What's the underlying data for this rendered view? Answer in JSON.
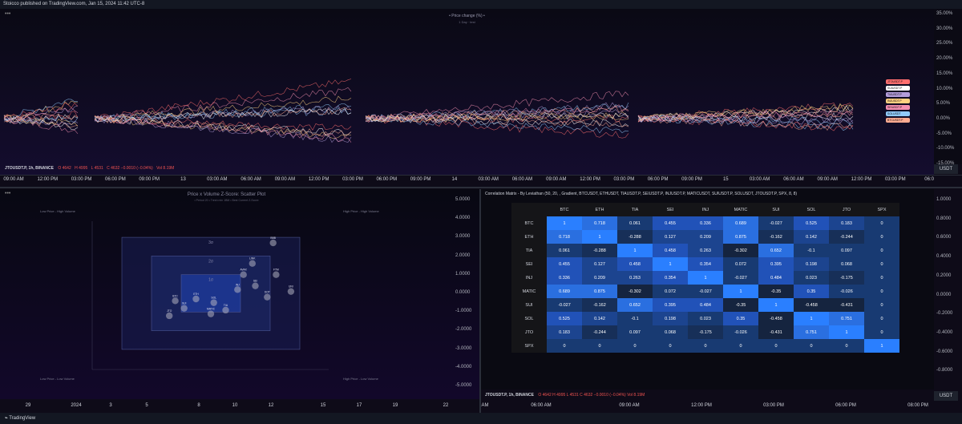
{
  "header": {
    "publisher_text": "Stoicco published on TradingView.com, Jan 15, 2024 11:42 UTC-8"
  },
  "top_chart": {
    "title": "• Price change (%) •",
    "subtitle": "1 Day · test",
    "y_ticks": [
      "35.00%",
      "30.00%",
      "25.00%",
      "20.00%",
      "15.00%",
      "10.00%",
      "5.00%",
      "0.00%",
      "-5.00%",
      "-10.00%",
      "-15.00%"
    ],
    "legend_symbol": "JTOUSDT.P, 1h, BINANCE",
    "legend_values": {
      "o": "O 4642",
      "h": "H 4995",
      "l": "L 4531",
      "c": "C 4632 −0.0010 (−0.04%)",
      "vol": "Vol 8.19M"
    },
    "time_ticks": [
      "09:00 AM",
      "12:00 PM",
      "03:00 PM",
      "06:00 PM",
      "09:00 PM",
      "13",
      "03:00 AM",
      "06:00 AM",
      "09:00 AM",
      "12:00 PM",
      "03:00 PM",
      "06:00 PM",
      "09:00 PM",
      "14",
      "03:00 AM",
      "06:00 AM",
      "09:00 AM",
      "12:00 PM",
      "03:00 PM",
      "06:00 PM",
      "09:00 PM",
      "15",
      "03:00 AM",
      "06:00 AM",
      "09:00 AM",
      "12:00 PM",
      "03:00 PM",
      "06:0"
    ],
    "currency": "USDT",
    "series_tags": [
      "JTOUSDT.P",
      "SUIUSDT.P",
      "TIAUSDT.P",
      "INJUSDT.P",
      "SEIUSDT.P",
      "SOLUSDT",
      "BTCUSDT.P"
    ],
    "series_colors": [
      "#ff6e6e",
      "#ffffff",
      "#b39ddb",
      "#ffd180",
      "#f48fb1",
      "#90caf9",
      "#ffab91"
    ]
  },
  "scatter": {
    "title": "Price x Volume Z-Score: Scatter Plot",
    "subtitle": "• Period 20 • Tresh min 1BM • Best Current Z-Score",
    "zone_labels": {
      "tl": "Low Price - High Volume",
      "tr": "High Price - High Volume",
      "bl": "Low Price - Low Volume",
      "br": "High Price - Low Volume"
    },
    "sigma_labels": [
      "3σ",
      "2σ",
      "1σ"
    ],
    "y_ticks": [
      "5.0000",
      "4.0000",
      "3.0000",
      "2.0000",
      "1.0000",
      "0.0000",
      "-1.0000",
      "-2.0000",
      "-3.0000",
      "-4.0000",
      "-5.0000"
    ],
    "x_ticks": [
      "29",
      "2024",
      "3",
      "5",
      "8",
      "10",
      "12",
      "15",
      "17",
      "19",
      "22"
    ],
    "points": [
      {
        "label": "BBB",
        "x": 2.1,
        "y": 2.7
      },
      {
        "label": "LINK",
        "x": 1.4,
        "y": 1.6
      },
      {
        "label": "FTM",
        "x": 2.2,
        "y": 1.0
      },
      {
        "label": "AVAX",
        "x": 1.1,
        "y": 1.0
      },
      {
        "label": "SEI",
        "x": 1.5,
        "y": 0.4
      },
      {
        "label": "INJ",
        "x": 0.9,
        "y": 0.2
      },
      {
        "label": "UNI",
        "x": 2.7,
        "y": 0.1
      },
      {
        "label": "DOT",
        "x": 1.9,
        "y": -0.2
      },
      {
        "label": "ETH",
        "x": -0.5,
        "y": -0.3
      },
      {
        "label": "BTC",
        "x": -1.2,
        "y": -0.4
      },
      {
        "label": "SOL",
        "x": 0.1,
        "y": -0.5
      },
      {
        "label": "SUI",
        "x": -0.9,
        "y": -0.8
      },
      {
        "label": "TIA",
        "x": 0.5,
        "y": -0.9
      },
      {
        "label": "JTO",
        "x": -1.4,
        "y": -1.2
      },
      {
        "label": "MATIC",
        "x": 0.0,
        "y": -1.1
      }
    ]
  },
  "corr": {
    "title": "Correlation Matrix - By Leviathan (50, 20, , Gradient, BTCUSDT, ETHUSDT, TIAUSDT.P, SEIUSDT.P, INJUSDT.P, MATICUSDT, SUIUSDT.P, SOLUSDT, JTOUSDT.P, SPX, 8, 8)",
    "labels": [
      "BTC",
      "ETH",
      "TIA",
      "SEI",
      "INJ",
      "MATIC",
      "SUI",
      "SOL",
      "JTO",
      "SPX"
    ],
    "matrix": [
      [
        "1",
        "0.718",
        "0.061",
        "0.455",
        "0.336",
        "0.689",
        "-0.027",
        "0.525",
        "0.183",
        "0"
      ],
      [
        "0.718",
        "1",
        "-0.288",
        "0.127",
        "0.209",
        "0.875",
        "-0.162",
        "0.142",
        "-0.244",
        "0"
      ],
      [
        "0.061",
        "-0.288",
        "1",
        "0.458",
        "0.263",
        "-0.302",
        "0.652",
        "-0.1",
        "0.097",
        "0"
      ],
      [
        "0.455",
        "0.127",
        "0.458",
        "1",
        "0.354",
        "0.072",
        "0.395",
        "0.198",
        "0.068",
        "0"
      ],
      [
        "0.336",
        "0.209",
        "0.263",
        "0.354",
        "1",
        "-0.027",
        "0.484",
        "0.023",
        "-0.175",
        "0"
      ],
      [
        "0.689",
        "0.875",
        "-0.302",
        "0.072",
        "-0.027",
        "1",
        "-0.35",
        "0.35",
        "-0.026",
        "0"
      ],
      [
        "-0.027",
        "-0.162",
        "0.652",
        "0.395",
        "0.484",
        "-0.35",
        "1",
        "-0.458",
        "-0.431",
        "0"
      ],
      [
        "0.525",
        "0.142",
        "-0.1",
        "0.198",
        "0.023",
        "0.35",
        "-0.458",
        "1",
        "0.751",
        "0"
      ],
      [
        "0.183",
        "-0.244",
        "0.097",
        "0.068",
        "-0.175",
        "-0.026",
        "-0.431",
        "0.751",
        "1",
        "0"
      ],
      [
        "0",
        "0",
        "0",
        "0",
        "0",
        "0",
        "0",
        "0",
        "0",
        "1"
      ]
    ],
    "y_ticks": [
      "1.0000",
      "0.8000",
      "0.6000",
      "0.4000",
      "0.2000",
      "0.0000",
      "-0.2000",
      "-0.4000",
      "-0.6000",
      "-0.8000"
    ],
    "legend_symbol": "JTOUSDT.P, 1h, BINANCE",
    "legend_values": "O 4642 H 4995 L 4531 C 4632 −0.0010 (−0.04%) Vol 8.19M",
    "time_ticks": [
      "AM",
      "06:00 AM",
      "09:00 AM",
      "12:00 PM",
      "03:00 PM",
      "06:00 PM",
      "08:00 PM"
    ],
    "currency": "USDT"
  },
  "footer": {
    "brand": "TradingView"
  }
}
